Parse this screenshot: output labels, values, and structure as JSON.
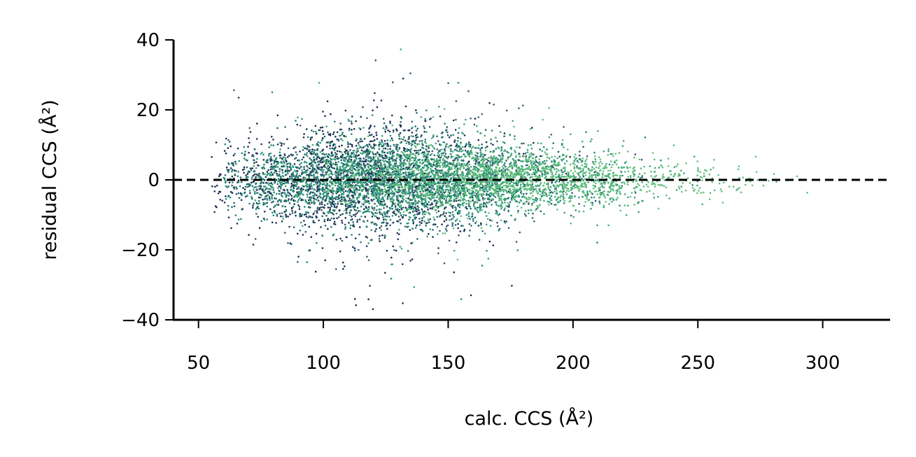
{
  "chart_data": {
    "type": "scatter",
    "xlabel": "calc. CCS (Å²)",
    "ylabel": "residual CCS (Å²)",
    "xlim": [
      40,
      327
    ],
    "ylim": [
      -40,
      40
    ],
    "xticks": [
      50,
      100,
      150,
      200,
      250,
      300
    ],
    "yticks": [
      -40,
      -20,
      0,
      20,
      40
    ],
    "xtick_labels": [
      "50",
      "100",
      "150",
      "200",
      "250",
      "300"
    ],
    "ytick_labels": [
      "−40",
      "−20",
      "0",
      "20",
      "40"
    ],
    "grid": false,
    "legend": "none",
    "reference_line": {
      "y": 0,
      "style": "dashed",
      "color": "#000000"
    },
    "colors": [
      "#1b2b4f",
      "#2a5f70",
      "#1d8a72",
      "#3fa37d",
      "#5fbf79"
    ],
    "series": [
      {
        "color": "#1b2b4f",
        "x_range": [
          55,
          200
        ],
        "x_center": 115,
        "residual_sd": 9
      },
      {
        "color": "#2a5f70",
        "x_range": [
          58,
          230
        ],
        "x_center": 130,
        "residual_sd": 8
      },
      {
        "color": "#1d8a72",
        "x_range": [
          60,
          250
        ],
        "x_center": 125,
        "residual_sd": 6
      },
      {
        "color": "#3fa37d",
        "x_range": [
          70,
          270
        ],
        "x_center": 150,
        "residual_sd": 6
      },
      {
        "color": "#5fbf79",
        "x_range": [
          100,
          315
        ],
        "x_center": 170,
        "residual_sd": 5
      }
    ]
  }
}
